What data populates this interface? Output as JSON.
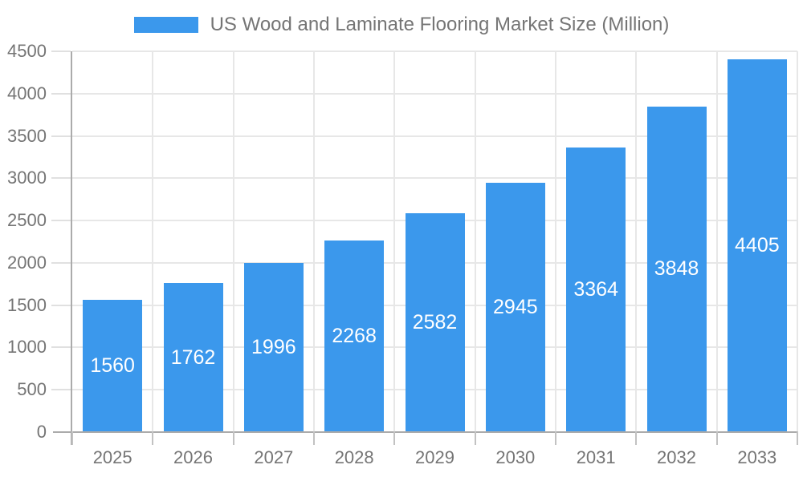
{
  "legend": {
    "label": "US Wood and Laminate Flooring Market Size (Million)"
  },
  "chart_data": {
    "type": "bar",
    "title": "US Wood and Laminate Flooring Market Size (Million)",
    "categories": [
      "2025",
      "2026",
      "2027",
      "2028",
      "2029",
      "2030",
      "2031",
      "2032",
      "2033"
    ],
    "values": [
      1560,
      1762,
      1996,
      2268,
      2582,
      2945,
      3364,
      3848,
      4405
    ],
    "xlabel": "",
    "ylabel": "",
    "ylim": [
      0,
      4500
    ],
    "yticks": [
      0,
      500,
      1000,
      1500,
      2000,
      2500,
      3000,
      3500,
      4000,
      4500
    ],
    "grid": true,
    "legend_position": "top",
    "value_labels": "centered-inside-bars",
    "colors": {
      "bar": "#3B98EC",
      "value_label": "#ffffff",
      "tick_label": "#757575",
      "legend_text": "#757575",
      "gridline": "#e7e7e7",
      "axis_line": "#ababab",
      "x_tick": "#c2c2c2",
      "y_tick": "#e0e0e0",
      "background": "#ffffff"
    }
  }
}
